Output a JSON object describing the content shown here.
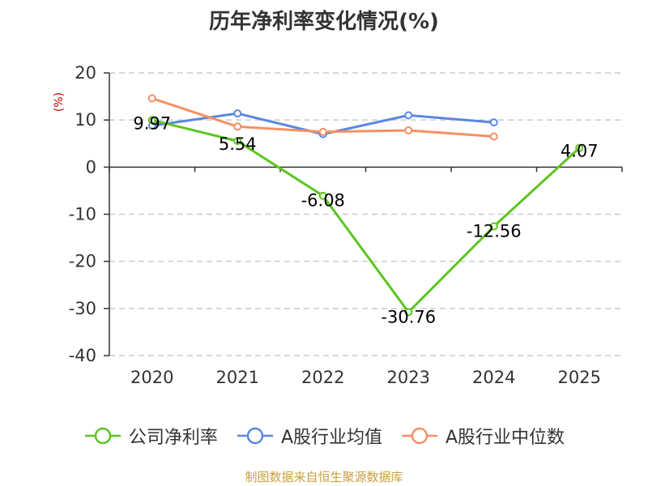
{
  "chart_data": {
    "type": "line",
    "title": "历年净利率变化情况(%)",
    "ylabel": "(%)",
    "xlabel": "",
    "categories": [
      "2020",
      "2021",
      "2022",
      "2023",
      "2024",
      "2025"
    ],
    "ylim": [
      -40,
      20
    ],
    "yticks": [
      20,
      10,
      0,
      -10,
      -20,
      -30,
      -40
    ],
    "ytick_labels": [
      "20",
      "10",
      "0",
      "-10",
      "-20",
      "-30",
      "-40"
    ],
    "grid": true,
    "legend_position": "bottom",
    "series": [
      {
        "name": "公司净利率",
        "color": "#5cc520",
        "values": [
          9.97,
          5.54,
          -6.08,
          -30.76,
          -12.56,
          4.07
        ],
        "labels": [
          "9.97",
          "5.54",
          "-6.08",
          "-30.76",
          "-12.56",
          "4.07"
        ]
      },
      {
        "name": "A股行业均值",
        "color": "#5b87e0",
        "values": [
          8.8,
          11.4,
          7.0,
          11.0,
          9.5,
          null
        ]
      },
      {
        "name": "A股行业中位数",
        "color": "#f59064",
        "values": [
          14.6,
          8.6,
          7.5,
          7.8,
          6.5,
          null
        ]
      }
    ]
  },
  "source": "制图数据来自恒生聚源数据库"
}
